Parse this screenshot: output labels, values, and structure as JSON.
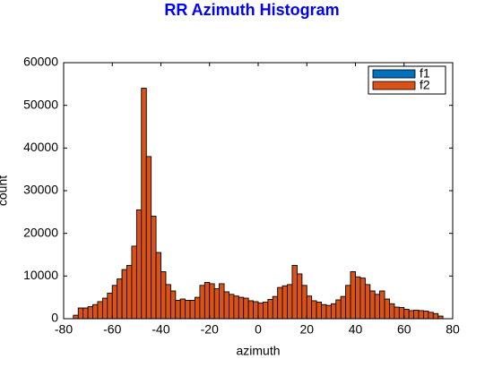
{
  "chart_data": {
    "type": "histogram",
    "title": "RR Azimuth Histogram",
    "x_label": "azimuth",
    "y_label": "count",
    "bins": [
      -76,
      -74,
      -72,
      -70,
      -68,
      -66,
      -64,
      -62,
      -60,
      -58,
      -56,
      -54,
      -52,
      -50,
      -48,
      -46,
      -44,
      -42,
      -40,
      -38,
      -36,
      -34,
      -32,
      -30,
      -28,
      -26,
      -24,
      -22,
      -20,
      -18,
      -16,
      -14,
      -12,
      -10,
      -8,
      -6,
      -4,
      -2,
      0,
      2,
      4,
      6,
      8,
      10,
      12,
      14,
      16,
      18,
      20,
      22,
      24,
      26,
      28,
      30,
      32,
      34,
      36,
      38,
      40,
      42,
      44,
      46,
      48,
      50,
      52,
      54,
      56,
      58,
      60,
      62,
      64,
      66,
      68,
      70,
      72,
      74,
      76
    ],
    "series": [
      {
        "name": "f1",
        "color": "#0072bd",
        "values": [
          800,
          2500,
          2500,
          2800,
          3300,
          4000,
          4800,
          6000,
          7800,
          9300,
          11500,
          12500,
          17000,
          25500,
          54000,
          38000,
          24000,
          15500,
          11000,
          8000,
          6500,
          4300,
          4600,
          4300,
          4300,
          5000,
          7800,
          8500,
          8200,
          7000,
          8200,
          6300,
          5700,
          5300,
          5000,
          4800,
          4200,
          4000,
          3700,
          3900,
          4500,
          5200,
          7300,
          7700,
          8000,
          12500,
          10500,
          7800,
          5300,
          4200,
          3900,
          3300,
          3100,
          3500,
          4400,
          5200,
          7800,
          11000,
          9800,
          9500,
          8000,
          6500,
          5700,
          6500,
          4600,
          3500,
          2700,
          2600,
          2200,
          1900,
          2000,
          1900,
          1800,
          1500,
          1200,
          600
        ]
      },
      {
        "name": "f2",
        "color": "#d95319",
        "values": [
          800,
          2500,
          2500,
          2800,
          3300,
          4000,
          4800,
          6000,
          7800,
          9300,
          11500,
          12500,
          17000,
          25500,
          54000,
          38000,
          24000,
          15500,
          11000,
          8000,
          6500,
          4300,
          4600,
          4300,
          4300,
          5000,
          7800,
          8500,
          8200,
          7000,
          8200,
          6300,
          5700,
          5300,
          5000,
          4800,
          4200,
          4000,
          3700,
          3900,
          4500,
          5200,
          7300,
          7700,
          8000,
          12500,
          10500,
          7800,
          5300,
          4200,
          3900,
          3300,
          3100,
          3500,
          4400,
          5200,
          7800,
          11000,
          9800,
          9500,
          8000,
          6500,
          5700,
          6500,
          4600,
          3500,
          2700,
          2600,
          2200,
          1900,
          2000,
          1900,
          1800,
          1500,
          1200,
          600
        ]
      }
    ],
    "xlim": [
      -80,
      80
    ],
    "xticks": [
      -80,
      -60,
      -40,
      -20,
      0,
      20,
      40,
      60,
      80
    ],
    "ylim": [
      0,
      60000
    ],
    "yticks": [
      0,
      10000,
      20000,
      30000,
      40000,
      50000,
      60000
    ],
    "legend": "upper right"
  }
}
